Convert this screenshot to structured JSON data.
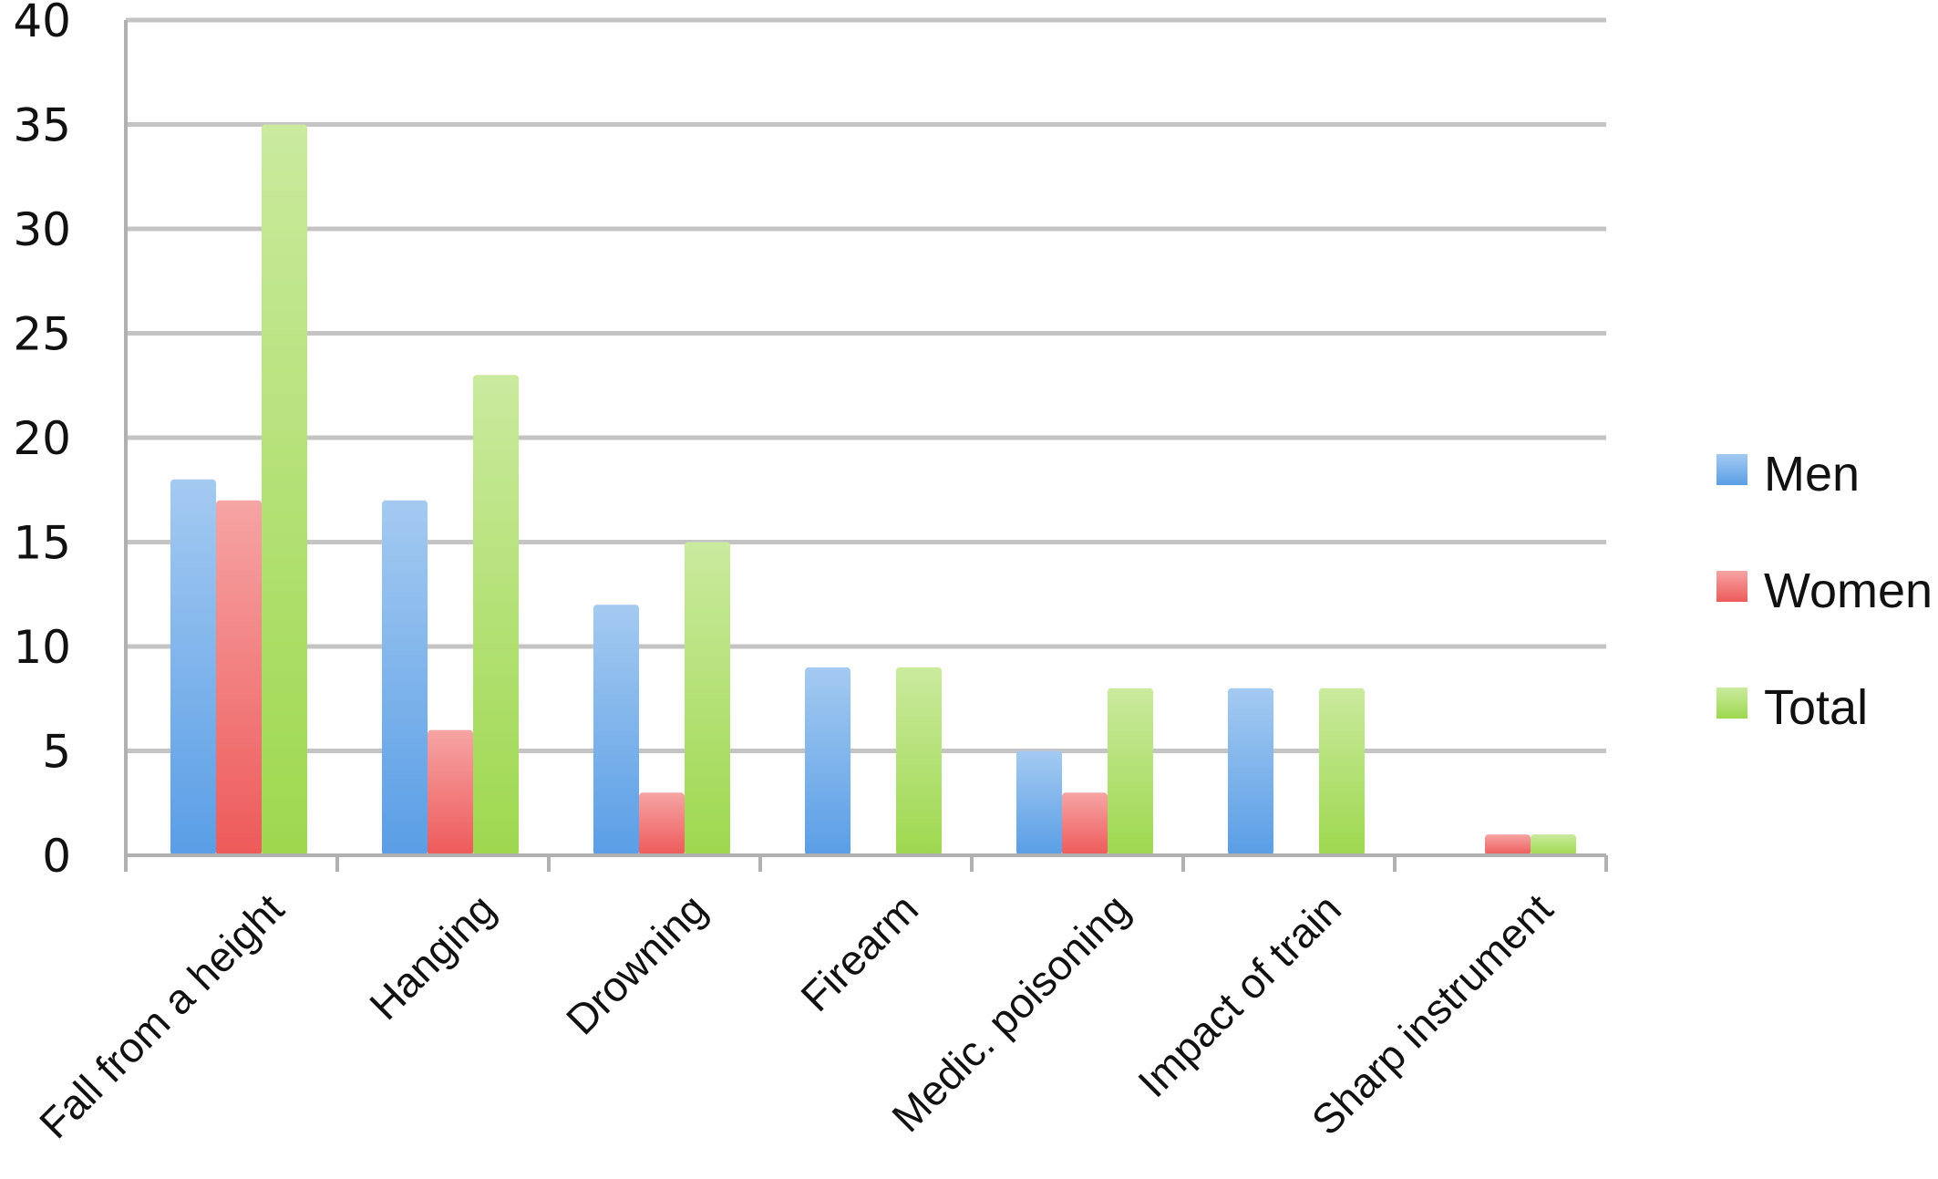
{
  "chart_data": {
    "type": "bar",
    "title": "",
    "xlabel": "",
    "ylabel": "",
    "categories": [
      "Fall from a height",
      "Hanging",
      "Drowning",
      "Firearm",
      "Medic. poisoning",
      "Impact of train",
      "Sharp instrument"
    ],
    "series": [
      {
        "name": "Men",
        "values": [
          18,
          17,
          12,
          9,
          5,
          8,
          0
        ],
        "color": "#5a9ee6"
      },
      {
        "name": "Women",
        "values": [
          17,
          6,
          3,
          0,
          3,
          0,
          1
        ],
        "color": "#ee5a5a"
      },
      {
        "name": "Total",
        "values": [
          35,
          23,
          15,
          9,
          8,
          8,
          1
        ],
        "color": "#9ed84e"
      }
    ],
    "ylim": [
      0,
      40
    ],
    "yticks": [
      "0",
      "5",
      "10",
      "15",
      "20",
      "25",
      "30",
      "35",
      "40"
    ],
    "grid": true,
    "legend": "right"
  }
}
